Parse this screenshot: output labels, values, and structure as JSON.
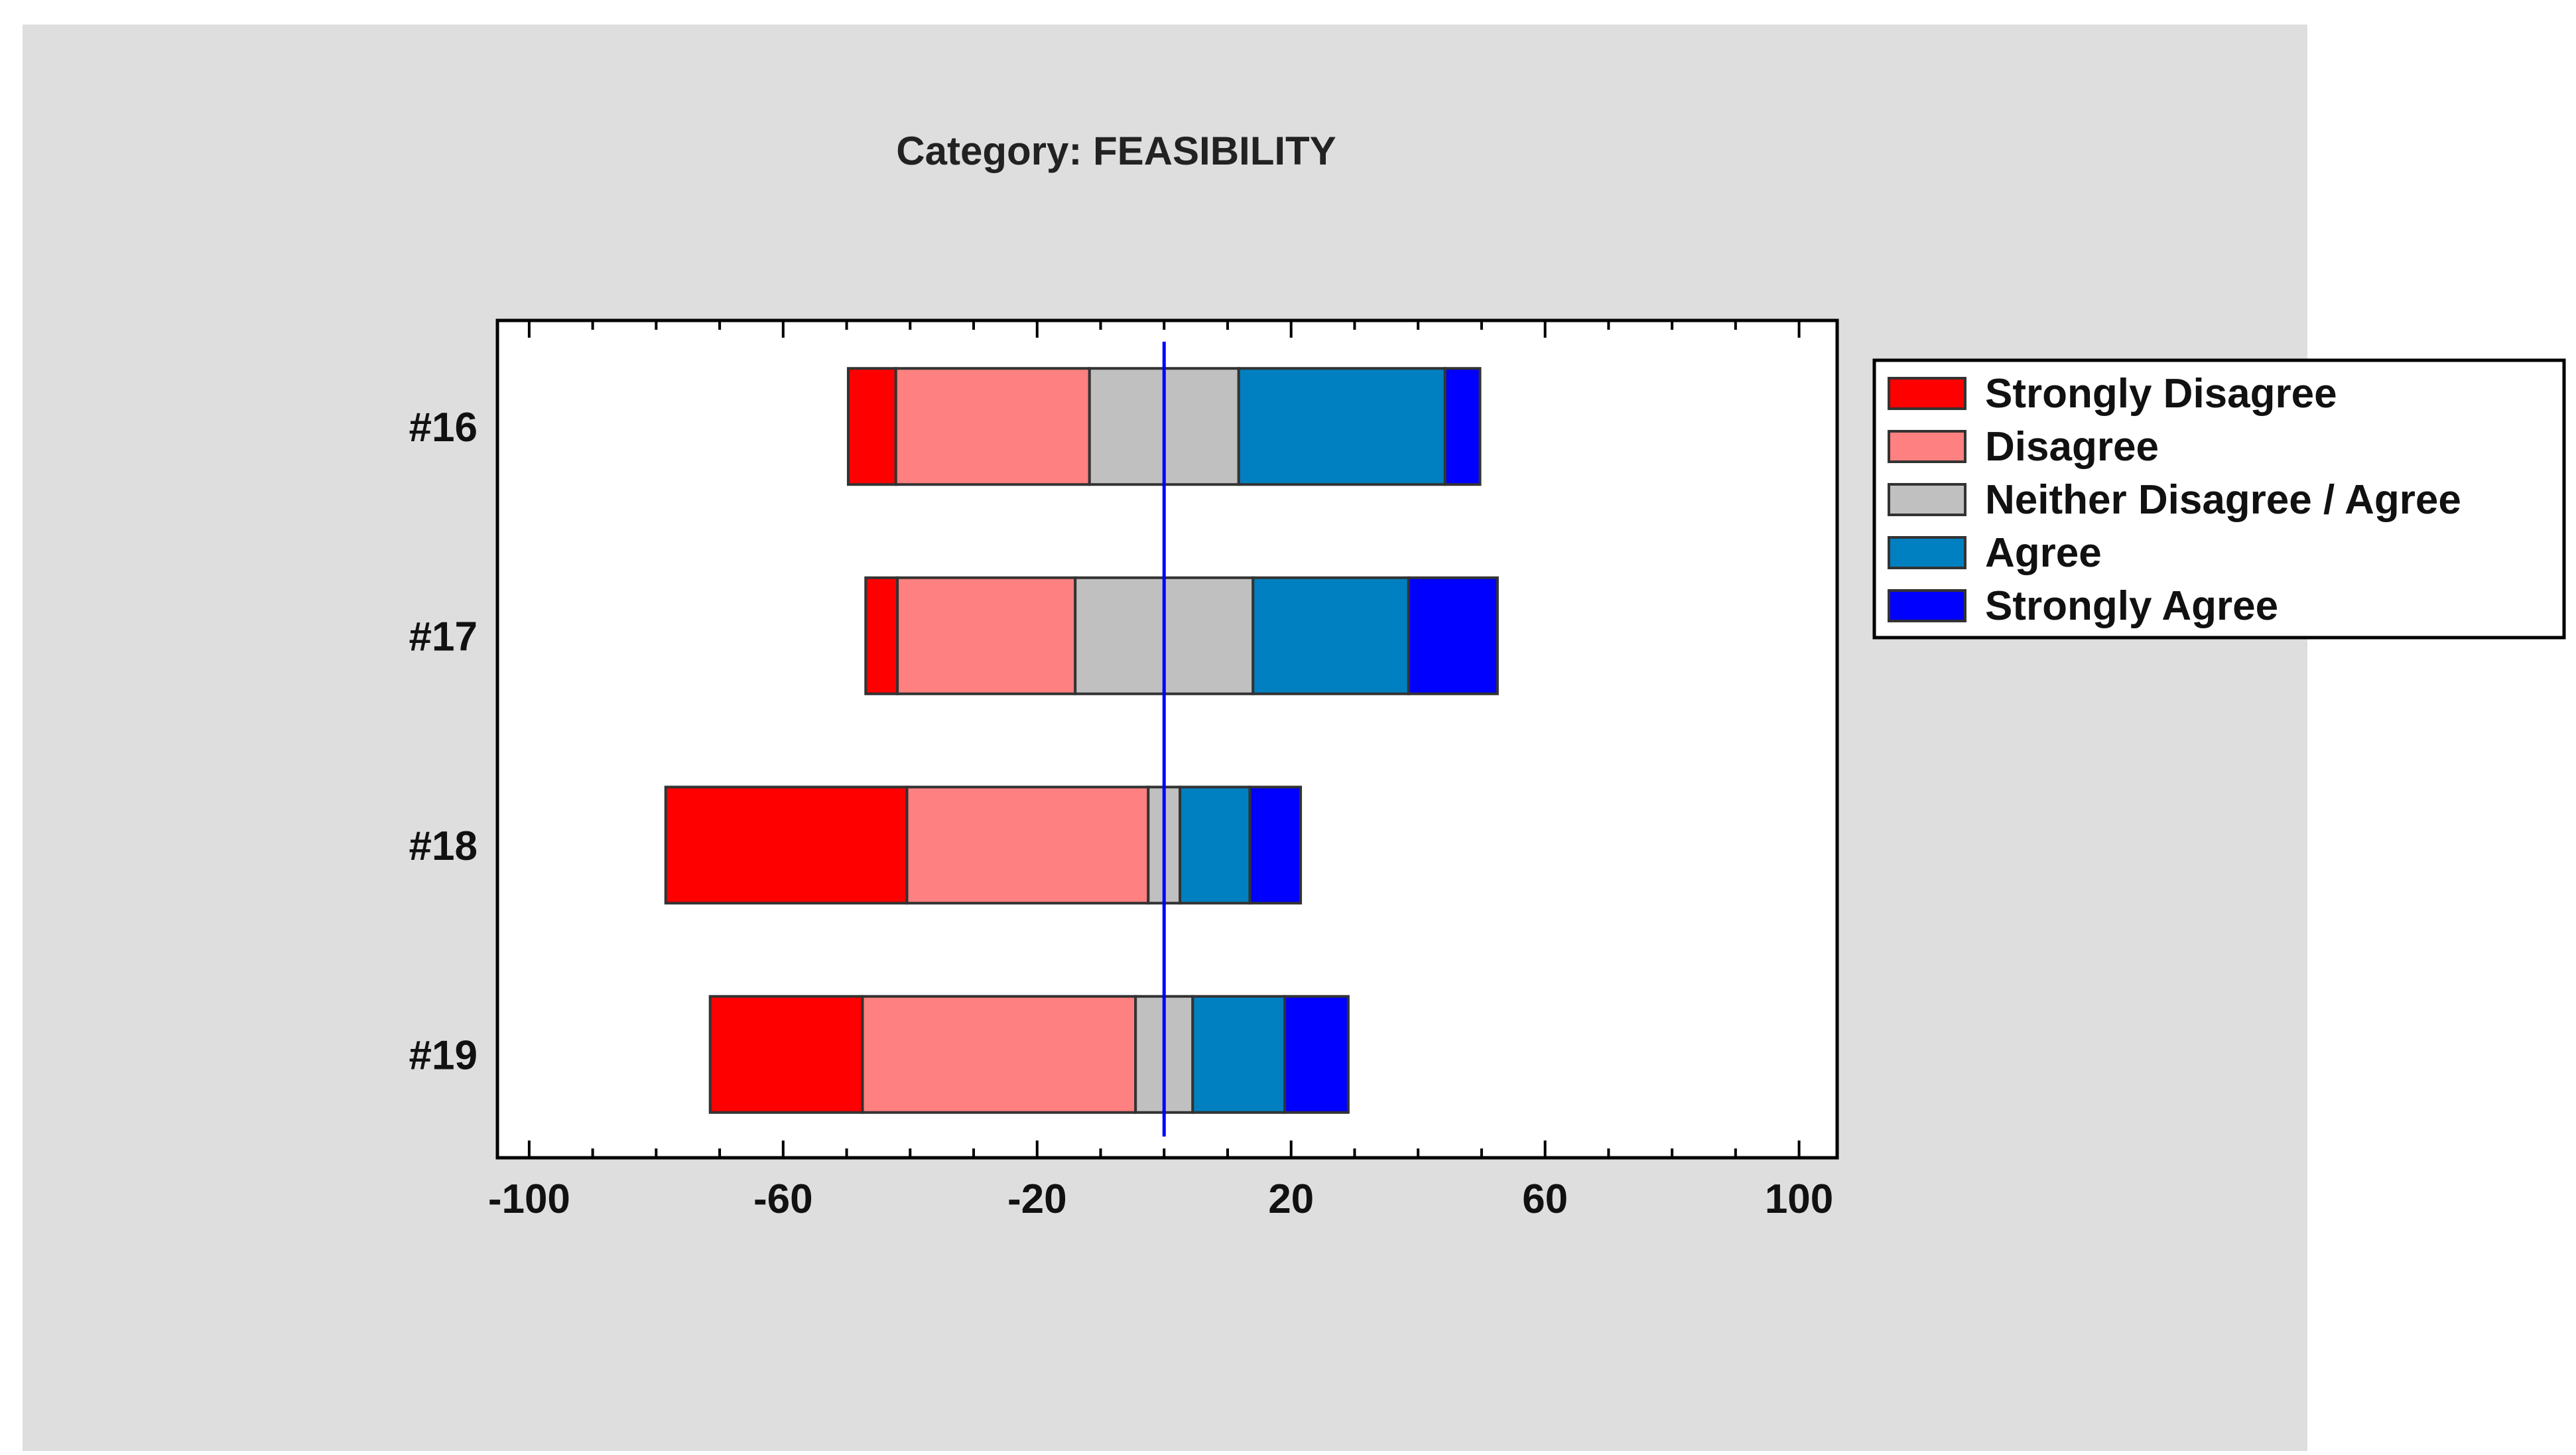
{
  "chart_data": {
    "type": "bar",
    "orientation": "horizontal-diverging",
    "title": "Category: FEASIBILITY",
    "categories": [
      "#16",
      "#17",
      "#18",
      "#19"
    ],
    "center": 0,
    "xlim": [
      -105,
      106
    ],
    "x_ticks": [
      -100,
      -60,
      -20,
      20,
      60,
      100
    ],
    "x_tick_labels": [
      "-100",
      "-60",
      "-20",
      "20",
      "60",
      "100"
    ],
    "series": [
      {
        "name": "Strongly Disagree",
        "color": "#ff0000",
        "values": [
          7.5,
          5,
          38,
          24
        ]
      },
      {
        "name": "Disagree",
        "color": "#ff8080",
        "values": [
          30.5,
          28,
          38,
          43
        ]
      },
      {
        "name": "Neither Disagree / Agree",
        "color": "#c0c0c0",
        "values": [
          23.5,
          28,
          5,
          9
        ]
      },
      {
        "name": "Agree",
        "color": "#0080c0",
        "values": [
          32.5,
          24.5,
          11,
          14.5
        ]
      },
      {
        "name": "Strongly Agree",
        "color": "#0000ff",
        "values": [
          5.5,
          14,
          8,
          10
        ]
      }
    ],
    "legend_position": "right",
    "grid": false
  }
}
